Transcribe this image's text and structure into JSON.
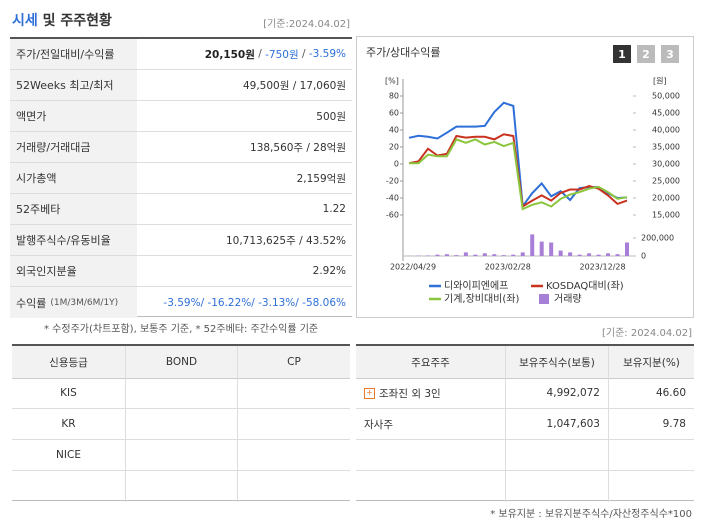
{
  "header": {
    "title_main": "시세",
    "title_rest": "및 주주현황",
    "basis": "[기준:2024.04.02]"
  },
  "price_table": {
    "rows": [
      {
        "label": "주가/전일대비/수익률",
        "value_parts": [
          "20,150원",
          " / ",
          "-750원",
          " / ",
          "-3.59%"
        ]
      },
      {
        "label": "52Weeks 최고/최저",
        "value": "49,500원 / 17,060원"
      },
      {
        "label": "액면가",
        "value": "500원"
      },
      {
        "label": "거래량/거래대금",
        "value": "138,560주 / 28억원"
      },
      {
        "label": "시가총액",
        "value": "2,159억원"
      },
      {
        "label": "52주베타",
        "value": "1.22"
      },
      {
        "label": "발행주식수/유동비율",
        "value": "10,713,625주 / 43.52%"
      },
      {
        "label": "외국인지분율",
        "value": "2.92%"
      },
      {
        "label": "수익률",
        "sublabel": "(1M/3M/6M/1Y)",
        "value": "-3.59%/ -16.22%/ -3.13%/ -58.06%"
      }
    ]
  },
  "price_note": "* 수정주가(차트포함), 보통주 기준, * 52주베타: 주간수익률 기준",
  "chart_buttons": [
    "1",
    "2",
    "3"
  ],
  "chart_data": {
    "type": "line",
    "title": "주가/상대수익률",
    "y_unit": "[%]",
    "y2_unit": "[원]",
    "categories": [
      "2022/04/29",
      null,
      null,
      null,
      null,
      null,
      null,
      null,
      null,
      null,
      "2023/02/28",
      null,
      null,
      null,
      null,
      null,
      null,
      null,
      null,
      null,
      "2023/12/28",
      null,
      null,
      null
    ],
    "ylim": [
      -60,
      80
    ],
    "yticks": [
      -60,
      -40,
      -20,
      0,
      20,
      40,
      60,
      80
    ],
    "y2lim": [
      15000,
      50000
    ],
    "y2ticks": [
      {
        "value": 15000,
        "label": "15,000"
      },
      {
        "value": 20000,
        "label": "20,000"
      },
      {
        "value": 25000,
        "label": "25,000"
      },
      {
        "value": 30000,
        "label": "30,000"
      },
      {
        "value": 35000,
        "label": "35,000"
      },
      {
        "value": 40000,
        "label": "40,000"
      },
      {
        "value": 45000,
        "label": "45,000"
      },
      {
        "value": 50000,
        "label": "50,000"
      }
    ],
    "vlim": [
      0,
      200000
    ],
    "vticks": [
      0,
      {
        "value": 200000,
        "label": "200,000"
      }
    ],
    "grid": false,
    "series": [
      {
        "name": "디와이피엔에프",
        "color": "#2e6fd8",
        "axis": "y2",
        "values": [
          37700,
          38300,
          38000,
          37500,
          39200,
          41000,
          41000,
          41000,
          41200,
          45300,
          48000,
          47100,
          17600,
          21400,
          24300,
          20500,
          22000,
          19400,
          22900,
          23200,
          23200,
          21400,
          20000,
          20150
        ]
      },
      {
        "name": "KOSDAQ대비(좌)",
        "color": "#c8321e",
        "values": [
          1,
          3,
          18,
          10,
          12,
          33,
          31,
          32,
          32,
          29,
          35,
          33,
          -50,
          -43,
          -37,
          -43,
          -34,
          -30,
          -30,
          -26,
          -29,
          -37,
          -47,
          -43
        ]
      },
      {
        "name": "기계,장비대비(좌)",
        "color": "#8cc63e",
        "values": [
          1,
          1,
          11,
          9,
          9,
          29,
          25,
          29,
          23,
          26,
          21,
          25,
          -53,
          -48,
          -45,
          -50,
          -41,
          -36,
          -33,
          -29,
          -27,
          -33,
          -41,
          -39
        ]
      },
      {
        "name": "거래량",
        "color": "#a77fd6",
        "axis": "volume",
        "values": [
          2000,
          5000,
          6000,
          15000,
          20000,
          10000,
          40000,
          15000,
          30000,
          20000,
          10000,
          15000,
          40000,
          240000,
          160000,
          150000,
          60000,
          40000,
          15000,
          30000,
          15000,
          30000,
          20000,
          150000
        ]
      }
    ]
  },
  "basis2": "[기준: 2024.04.02]",
  "rating_table": {
    "headers": [
      "신용등급",
      "BOND",
      "CP"
    ],
    "rows": [
      "KIS",
      "KR",
      "NICE"
    ]
  },
  "holder_table": {
    "headers": [
      "주요주주",
      "보유주식수(보통)",
      "보유지분(%)"
    ],
    "rows": [
      [
        "조좌진 외 3인",
        "4,992,072",
        "46.60"
      ],
      [
        "자사주",
        "1,047,603",
        "9.78"
      ]
    ]
  },
  "holder_note": "* 보유지분 : 보유지분주식수/자산정주식수*100"
}
